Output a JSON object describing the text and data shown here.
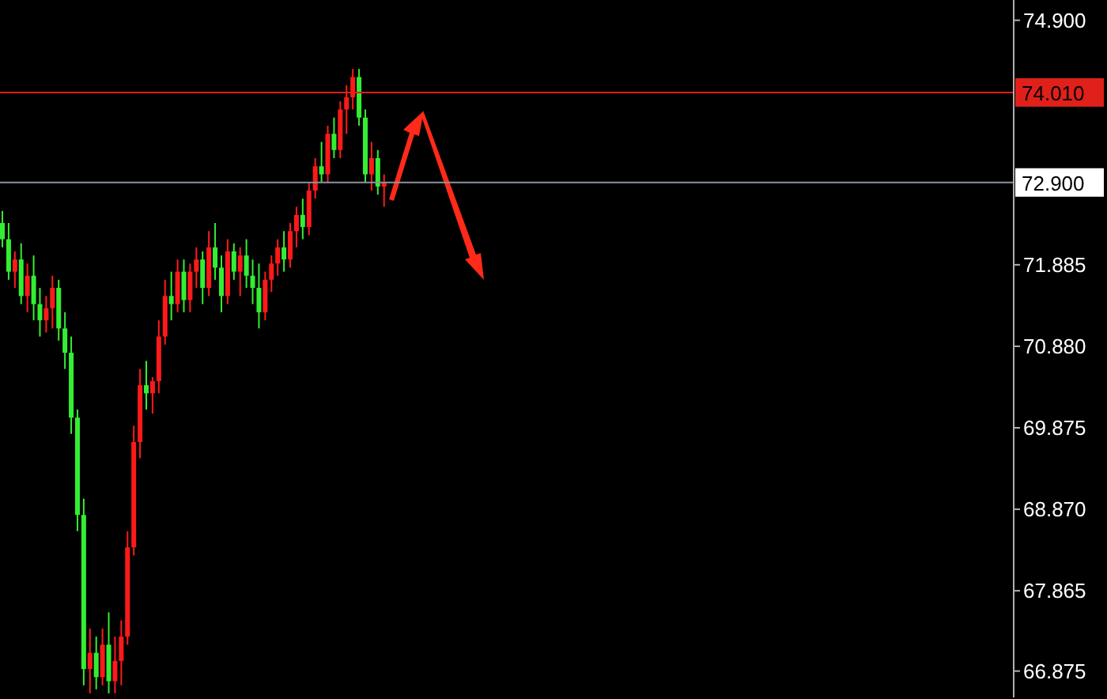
{
  "chart_data": {
    "type": "candlestick",
    "categories": [
      null,
      null,
      null,
      null,
      null,
      null,
      null,
      null,
      null,
      null,
      null,
      null,
      null,
      null,
      null,
      null,
      null,
      null,
      null,
      null,
      null,
      null,
      null,
      null,
      null,
      null,
      null,
      null,
      null,
      null,
      null,
      null,
      null,
      null,
      null,
      null,
      null,
      null,
      null,
      null,
      null,
      null,
      null,
      null,
      null,
      null,
      null,
      null,
      null,
      null,
      null,
      null,
      null,
      null,
      null,
      null,
      null,
      null,
      null,
      null,
      null,
      null,
      null,
      null,
      null,
      null,
      null,
      null,
      null,
      null,
      null,
      null,
      null,
      null,
      null,
      null,
      null,
      null,
      null,
      null,
      null,
      null,
      null,
      null,
      null,
      null,
      null,
      null,
      null,
      null,
      null,
      null,
      null,
      null,
      null,
      null,
      null,
      null,
      null,
      null,
      null,
      null,
      null,
      null,
      null,
      null,
      null,
      null,
      null,
      null,
      null,
      null,
      null,
      null,
      null,
      null,
      null,
      null,
      null,
      null,
      null,
      null,
      null,
      null,
      null,
      null,
      null,
      null,
      null,
      null,
      null,
      null,
      null,
      null,
      null,
      null,
      null,
      null,
      null,
      null,
      null,
      null,
      null,
      null,
      null,
      null,
      null,
      null,
      null,
      null,
      null,
      null,
      null,
      null,
      null,
      null,
      null,
      null,
      null,
      null,
      null,
      null
    ],
    "ohlc": [
      [
        72.4,
        72.55,
        72.1,
        72.2
      ],
      [
        72.2,
        72.4,
        71.7,
        71.8
      ],
      [
        71.8,
        72.05,
        71.6,
        71.95
      ],
      [
        71.95,
        72.15,
        71.4,
        71.5
      ],
      [
        71.5,
        71.9,
        71.3,
        71.75
      ],
      [
        71.75,
        72.0,
        71.2,
        71.4
      ],
      [
        71.4,
        71.6,
        71.0,
        71.2
      ],
      [
        71.2,
        71.5,
        71.05,
        71.35
      ],
      [
        71.35,
        71.75,
        71.1,
        71.6
      ],
      [
        71.6,
        71.7,
        70.95,
        71.1
      ],
      [
        71.1,
        71.3,
        70.6,
        70.8
      ],
      [
        70.8,
        71.0,
        69.8,
        70.0
      ],
      [
        70.0,
        70.1,
        68.6,
        68.8
      ],
      [
        68.8,
        69.0,
        66.7,
        66.9
      ],
      [
        66.9,
        67.4,
        66.6,
        67.1
      ],
      [
        67.1,
        67.3,
        66.65,
        66.8
      ],
      [
        66.8,
        67.4,
        66.7,
        67.2
      ],
      [
        67.2,
        67.6,
        66.6,
        66.75
      ],
      [
        66.75,
        67.3,
        66.6,
        67.0
      ],
      [
        67.0,
        67.5,
        66.7,
        67.3
      ],
      [
        67.3,
        68.6,
        67.2,
        68.4
      ],
      [
        68.4,
        69.9,
        68.3,
        69.7
      ],
      [
        69.7,
        70.6,
        69.5,
        70.4
      ],
      [
        70.4,
        70.7,
        70.1,
        70.3
      ],
      [
        70.3,
        70.5,
        70.05,
        70.45
      ],
      [
        70.45,
        71.2,
        70.3,
        71.0
      ],
      [
        71.0,
        71.7,
        70.9,
        71.5
      ],
      [
        71.5,
        71.8,
        71.2,
        71.4
      ],
      [
        71.4,
        71.95,
        71.3,
        71.8
      ],
      [
        71.8,
        71.95,
        71.3,
        71.45
      ],
      [
        71.45,
        71.9,
        71.3,
        71.8
      ],
      [
        71.8,
        72.1,
        71.6,
        71.95
      ],
      [
        71.95,
        72.05,
        71.4,
        71.6
      ],
      [
        71.6,
        72.3,
        71.5,
        72.1
      ],
      [
        72.1,
        72.4,
        71.7,
        71.85
      ],
      [
        71.85,
        72.0,
        71.3,
        71.5
      ],
      [
        71.5,
        72.2,
        71.4,
        72.05
      ],
      [
        72.05,
        72.15,
        71.7,
        71.8
      ],
      [
        71.8,
        72.1,
        71.5,
        72.0
      ],
      [
        72.0,
        72.2,
        71.6,
        71.75
      ],
      [
        71.75,
        71.95,
        71.4,
        71.6
      ],
      [
        71.6,
        71.9,
        71.1,
        71.3
      ],
      [
        71.3,
        71.8,
        71.2,
        71.7
      ],
      [
        71.7,
        72.0,
        71.55,
        71.9
      ],
      [
        71.9,
        72.2,
        71.75,
        72.1
      ],
      [
        72.1,
        72.3,
        71.8,
        71.95
      ],
      [
        71.95,
        72.4,
        71.85,
        72.3
      ],
      [
        72.3,
        72.6,
        72.1,
        72.5
      ],
      [
        72.5,
        72.7,
        72.2,
        72.35
      ],
      [
        72.35,
        72.9,
        72.25,
        72.8
      ],
      [
        72.8,
        73.2,
        72.7,
        73.1
      ],
      [
        73.1,
        73.4,
        72.9,
        73.0
      ],
      [
        73.0,
        73.6,
        72.9,
        73.5
      ],
      [
        73.5,
        73.7,
        73.2,
        73.3
      ],
      [
        73.3,
        73.9,
        73.2,
        73.8
      ],
      [
        73.8,
        74.1,
        73.5,
        73.95
      ],
      [
        73.95,
        74.3,
        73.8,
        74.2
      ],
      [
        74.2,
        74.3,
        73.6,
        73.7
      ],
      [
        73.7,
        73.8,
        72.9,
        73.0
      ],
      [
        73.0,
        73.4,
        72.8,
        73.2
      ],
      [
        73.2,
        73.3,
        72.75,
        72.85
      ],
      [
        72.85,
        73.0,
        72.6,
        72.9
      ],
      null,
      null,
      null,
      null,
      null,
      null,
      null,
      null,
      null,
      null,
      null,
      null,
      null,
      null,
      null,
      null,
      null,
      null,
      null,
      null,
      null,
      null,
      null,
      null,
      null,
      null,
      null,
      null,
      null,
      null,
      null,
      null,
      null,
      null,
      null,
      null,
      null,
      null,
      null,
      null,
      null,
      null,
      null,
      null,
      null,
      null,
      null,
      null,
      null,
      null,
      null,
      null,
      null,
      null,
      null,
      null,
      null,
      null,
      null,
      null,
      null,
      null,
      null,
      null,
      null,
      null,
      null,
      null,
      null,
      null,
      null,
      null,
      null,
      null,
      null,
      null,
      null,
      null,
      null,
      null,
      null,
      null,
      null,
      null,
      null,
      null,
      null,
      null,
      null,
      null,
      null,
      null,
      null,
      null,
      null,
      null,
      null,
      null,
      null,
      null
    ],
    "colors": [
      "#33ee33",
      "#33ee33",
      "#ff1a1a",
      "#33ee33",
      "#ff1a1a",
      "#33ee33",
      "#33ee33",
      "#ff1a1a",
      "#ff1a1a",
      "#33ee33",
      "#33ee33",
      "#33ee33",
      "#33ee33",
      "#33ee33",
      "#ff1a1a",
      "#33ee33",
      "#ff1a1a",
      "#33ee33",
      "#ff1a1a",
      "#ff1a1a",
      "#ff1a1a",
      "#ff1a1a",
      "#ff1a1a",
      "#33ee33",
      "#ff1a1a",
      "#ff1a1a",
      "#ff1a1a",
      "#33ee33",
      "#ff1a1a",
      "#33ee33",
      "#ff1a1a",
      "#ff1a1a",
      "#33ee33",
      "#ff1a1a",
      "#33ee33",
      "#33ee33",
      "#ff1a1a",
      "#33ee33",
      "#ff1a1a",
      "#33ee33",
      "#33ee33",
      "#33ee33",
      "#ff1a1a",
      "#ff1a1a",
      "#ff1a1a",
      "#33ee33",
      "#ff1a1a",
      "#ff1a1a",
      "#33ee33",
      "#ff1a1a",
      "#ff1a1a",
      "#33ee33",
      "#ff1a1a",
      "#33ee33",
      "#ff1a1a",
      "#ff1a1a",
      "#ff1a1a",
      "#33ee33",
      "#33ee33",
      "#ff1a1a",
      "#33ee33",
      "#ff1a1a",
      null,
      null,
      null,
      null,
      null,
      null,
      null,
      null,
      null,
      null,
      null,
      null,
      null,
      null,
      null,
      null,
      null,
      null,
      null,
      null,
      null,
      null,
      null,
      null,
      null,
      null,
      null,
      null,
      null,
      null,
      null,
      null,
      null,
      null,
      null,
      null,
      null,
      null,
      null,
      null,
      null,
      null,
      null,
      null,
      null,
      null,
      null,
      null,
      null,
      null,
      null,
      null,
      null,
      null,
      null,
      null,
      null,
      null,
      null,
      null,
      null,
      null,
      null,
      null,
      null,
      null,
      null,
      null,
      null,
      null,
      null,
      null,
      null,
      null,
      null,
      null,
      null,
      null,
      null,
      null,
      null,
      null,
      null,
      null,
      null,
      null,
      null,
      null,
      null,
      null,
      null,
      null,
      null,
      null,
      null,
      null,
      null,
      null,
      null,
      null
    ],
    "ylim": [
      66.55,
      75.15
    ],
    "yticks": [
      {
        "value": 74.9,
        "label": "74.900"
      },
      {
        "value": 71.885,
        "label": "71.885"
      },
      {
        "value": 70.88,
        "label": "70.880"
      },
      {
        "value": 69.875,
        "label": "69.875"
      },
      {
        "value": 68.87,
        "label": "68.870"
      },
      {
        "value": 67.865,
        "label": "67.865"
      },
      {
        "value": 66.875,
        "label": "66.875"
      }
    ],
    "tick_labels": "y",
    "grid": false,
    "ref_lines": [
      {
        "axis": "y",
        "value": 74.01,
        "label": "74.010",
        "color": "#e0201a"
      },
      {
        "axis": "y",
        "value": 72.9,
        "label": "72.900",
        "color": "#8a93a0"
      }
    ]
  }
}
